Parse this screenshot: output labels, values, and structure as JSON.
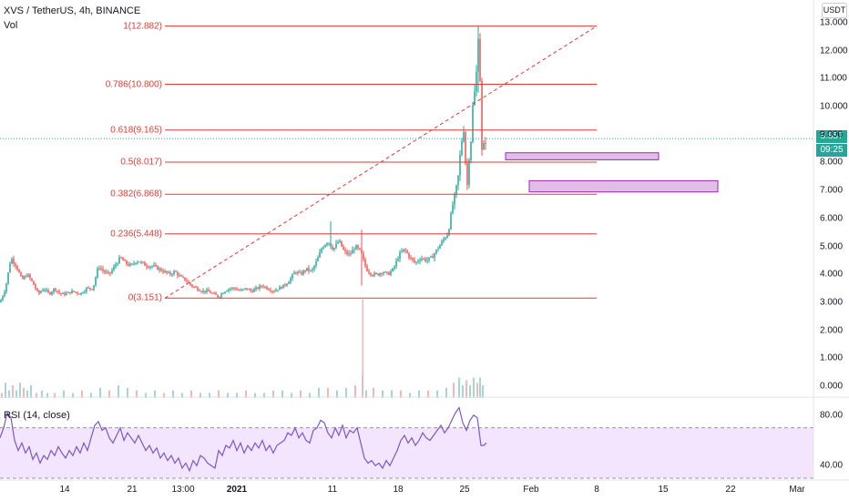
{
  "header": {
    "title": "XVS / TetherUS, 4h, BINANCE",
    "volume_label": "Vol",
    "rsi_label": "RSI (14, close)"
  },
  "price_axis": {
    "unit": "USDT",
    "labels": [
      "13.000",
      "12.000",
      "11.000",
      "10.000",
      "9.000",
      "8.000",
      "7.000",
      "6.000",
      "5.000",
      "4.000",
      "3.000",
      "2.000",
      "1.000",
      "0.000"
    ],
    "current_price": "8.857",
    "countdown": "09:25"
  },
  "rsi_axis": {
    "labels": [
      "80.00",
      "40.00"
    ]
  },
  "time_axis": {
    "labels": [
      "14",
      "21",
      "13:00",
      "2021",
      "11",
      "18",
      "25",
      "Feb",
      "8",
      "15",
      "22",
      "Mar"
    ],
    "bold": [
      "2021"
    ]
  },
  "colors": {
    "up": "#26a69a",
    "down": "#ef5350",
    "fib": "#e53935",
    "rsi_line": "#7e57c2",
    "rsi_band": "#f3e5fd",
    "zone_fill": "#e1bee7",
    "zone_stroke": "#9c27b0"
  },
  "chart_data": {
    "type": "candlestick",
    "symbol": "XVS / TetherUS",
    "timeframe": "4h",
    "exchange": "BINANCE",
    "ylim": [
      0,
      13.2
    ],
    "fib_levels": [
      {
        "ratio": "1",
        "price": 12.882,
        "label": "1(12.882)"
      },
      {
        "ratio": "0.786",
        "price": 10.8,
        "label": "0.786(10.800)"
      },
      {
        "ratio": "0.618",
        "price": 9.165,
        "label": "0.618(9.165)"
      },
      {
        "ratio": "0.5",
        "price": 8.017,
        "label": "0.5(8.017)"
      },
      {
        "ratio": "0.382",
        "price": 6.868,
        "label": "0.382(6.868)"
      },
      {
        "ratio": "0.236",
        "price": 5.448,
        "label": "0.236(5.448)"
      },
      {
        "ratio": "0",
        "price": 3.151,
        "label": "0(3.151)"
      }
    ],
    "price_path": [
      [
        0,
        3.0
      ],
      [
        6,
        3.5
      ],
      [
        12,
        4.6
      ],
      [
        18,
        4.3
      ],
      [
        24,
        3.8
      ],
      [
        30,
        4.0
      ],
      [
        36,
        3.7
      ],
      [
        42,
        3.3
      ],
      [
        48,
        3.5
      ],
      [
        54,
        3.3
      ],
      [
        60,
        3.5
      ],
      [
        66,
        3.3
      ],
      [
        72,
        3.3
      ],
      [
        80,
        3.4
      ],
      [
        88,
        3.3
      ],
      [
        95,
        3.5
      ],
      [
        102,
        3.5
      ],
      [
        108,
        4.3
      ],
      [
        114,
        4.1
      ],
      [
        120,
        4.0
      ],
      [
        126,
        4.3
      ],
      [
        132,
        4.6
      ],
      [
        138,
        4.4
      ],
      [
        144,
        4.3
      ],
      [
        150,
        4.5
      ],
      [
        156,
        4.4
      ],
      [
        162,
        4.3
      ],
      [
        168,
        4.3
      ],
      [
        174,
        4.2
      ],
      [
        180,
        4.1
      ],
      [
        186,
        4.0
      ],
      [
        192,
        4.1
      ],
      [
        198,
        3.9
      ],
      [
        204,
        3.8
      ],
      [
        210,
        3.6
      ],
      [
        216,
        3.5
      ],
      [
        222,
        3.4
      ],
      [
        228,
        3.4
      ],
      [
        234,
        3.3
      ],
      [
        240,
        3.2
      ],
      [
        246,
        3.4
      ],
      [
        252,
        3.5
      ],
      [
        258,
        3.5
      ],
      [
        264,
        3.4
      ],
      [
        270,
        3.5
      ],
      [
        276,
        3.4
      ],
      [
        282,
        3.5
      ],
      [
        288,
        3.6
      ],
      [
        294,
        3.5
      ],
      [
        300,
        3.4
      ],
      [
        306,
        3.5
      ],
      [
        312,
        3.6
      ],
      [
        318,
        3.8
      ],
      [
        324,
        4.1
      ],
      [
        330,
        4.0
      ],
      [
        336,
        4.2
      ],
      [
        342,
        4.1
      ],
      [
        348,
        4.5
      ],
      [
        354,
        5.0
      ],
      [
        360,
        5.2
      ],
      [
        366,
        4.9
      ],
      [
        372,
        5.2
      ],
      [
        378,
        4.8
      ],
      [
        384,
        4.7
      ],
      [
        390,
        5.0
      ],
      [
        396,
        4.8
      ],
      [
        402,
        4.2
      ],
      [
        408,
        4.0
      ],
      [
        414,
        4.0
      ],
      [
        420,
        4.1
      ],
      [
        426,
        4.0
      ],
      [
        432,
        4.2
      ],
      [
        438,
        4.7
      ],
      [
        444,
        4.9
      ],
      [
        450,
        4.6
      ],
      [
        456,
        4.4
      ],
      [
        462,
        4.6
      ],
      [
        468,
        4.5
      ],
      [
        474,
        4.6
      ],
      [
        480,
        4.9
      ],
      [
        486,
        5.2
      ],
      [
        492,
        5.5
      ],
      [
        497,
        6.5
      ],
      [
        500,
        6.9
      ],
      [
        503,
        7.5
      ],
      [
        506,
        8.6
      ],
      [
        509,
        9.2
      ],
      [
        511,
        8.0
      ],
      [
        513,
        7.2
      ],
      [
        515,
        8.2
      ],
      [
        517,
        8.8
      ],
      [
        519,
        10.0
      ],
      [
        521,
        10.5
      ],
      [
        523,
        11.2
      ],
      [
        525,
        12.6
      ],
      [
        527,
        11.0
      ],
      [
        529,
        8.4
      ],
      [
        531,
        8.6
      ],
      [
        534,
        8.857
      ]
    ],
    "volume": [
      [
        2,
        0.02
      ],
      [
        6,
        0.06
      ],
      [
        10,
        0.03
      ],
      [
        14,
        0.05
      ],
      [
        18,
        0.03
      ],
      [
        22,
        0.06
      ],
      [
        26,
        0.04
      ],
      [
        30,
        0.03
      ],
      [
        34,
        0.05
      ],
      [
        40,
        0.02
      ],
      [
        46,
        0.03
      ],
      [
        52,
        0.02
      ],
      [
        60,
        0.02
      ],
      [
        70,
        0.03
      ],
      [
        80,
        0.02
      ],
      [
        90,
        0.03
      ],
      [
        100,
        0.02
      ],
      [
        110,
        0.04
      ],
      [
        120,
        0.03
      ],
      [
        130,
        0.05
      ],
      [
        140,
        0.04
      ],
      [
        150,
        0.03
      ],
      [
        160,
        0.02
      ],
      [
        170,
        0.03
      ],
      [
        180,
        0.02
      ],
      [
        190,
        0.03
      ],
      [
        200,
        0.02
      ],
      [
        210,
        0.03
      ],
      [
        220,
        0.02
      ],
      [
        230,
        0.02
      ],
      [
        240,
        0.03
      ],
      [
        250,
        0.02
      ],
      [
        260,
        0.02
      ],
      [
        270,
        0.03
      ],
      [
        280,
        0.02
      ],
      [
        290,
        0.02
      ],
      [
        300,
        0.03
      ],
      [
        310,
        0.03
      ],
      [
        320,
        0.02
      ],
      [
        330,
        0.03
      ],
      [
        340,
        0.02
      ],
      [
        350,
        0.04
      ],
      [
        360,
        0.04
      ],
      [
        370,
        0.03
      ],
      [
        380,
        0.04
      ],
      [
        390,
        0.05
      ],
      [
        398,
        0.09
      ],
      [
        402,
        0.03
      ],
      [
        410,
        0.04
      ],
      [
        420,
        0.03
      ],
      [
        430,
        0.03
      ],
      [
        440,
        0.03
      ],
      [
        450,
        0.02
      ],
      [
        460,
        0.03
      ],
      [
        470,
        0.03
      ],
      [
        480,
        0.03
      ],
      [
        490,
        0.04
      ],
      [
        498,
        0.06
      ],
      [
        504,
        0.08
      ],
      [
        508,
        0.05
      ],
      [
        512,
        0.07
      ],
      [
        516,
        0.05
      ],
      [
        520,
        0.08
      ],
      [
        524,
        0.06
      ],
      [
        527,
        0.08
      ],
      [
        530,
        0.05
      ]
    ],
    "volume_spike": {
      "x": 398,
      "value": 3.1
    },
    "rsi": [
      [
        0,
        62
      ],
      [
        4,
        70
      ],
      [
        8,
        82
      ],
      [
        12,
        78
      ],
      [
        16,
        60
      ],
      [
        20,
        52
      ],
      [
        24,
        58
      ],
      [
        28,
        50
      ],
      [
        32,
        55
      ],
      [
        36,
        45
      ],
      [
        40,
        50
      ],
      [
        44,
        42
      ],
      [
        48,
        48
      ],
      [
        52,
        45
      ],
      [
        56,
        52
      ],
      [
        60,
        48
      ],
      [
        64,
        55
      ],
      [
        68,
        50
      ],
      [
        72,
        46
      ],
      [
        76,
        52
      ],
      [
        80,
        48
      ],
      [
        84,
        55
      ],
      [
        88,
        50
      ],
      [
        92,
        58
      ],
      [
        96,
        52
      ],
      [
        100,
        62
      ],
      [
        104,
        72
      ],
      [
        108,
        75
      ],
      [
        112,
        68
      ],
      [
        116,
        70
      ],
      [
        120,
        62
      ],
      [
        124,
        58
      ],
      [
        128,
        64
      ],
      [
        132,
        70
      ],
      [
        136,
        60
      ],
      [
        140,
        66
      ],
      [
        144,
        62
      ],
      [
        148,
        58
      ],
      [
        152,
        64
      ],
      [
        156,
        58
      ],
      [
        160,
        52
      ],
      [
        164,
        56
      ],
      [
        168,
        50
      ],
      [
        172,
        54
      ],
      [
        176,
        46
      ],
      [
        180,
        50
      ],
      [
        184,
        44
      ],
      [
        188,
        48
      ],
      [
        192,
        42
      ],
      [
        196,
        46
      ],
      [
        200,
        38
      ],
      [
        204,
        42
      ],
      [
        208,
        36
      ],
      [
        212,
        44
      ],
      [
        216,
        40
      ],
      [
        220,
        48
      ],
      [
        224,
        46
      ],
      [
        228,
        42
      ],
      [
        232,
        40
      ],
      [
        236,
        38
      ],
      [
        240,
        52
      ],
      [
        244,
        48
      ],
      [
        248,
        56
      ],
      [
        252,
        54
      ],
      [
        256,
        60
      ],
      [
        260,
        52
      ],
      [
        264,
        58
      ],
      [
        268,
        50
      ],
      [
        272,
        56
      ],
      [
        276,
        52
      ],
      [
        280,
        58
      ],
      [
        284,
        54
      ],
      [
        288,
        60
      ],
      [
        292,
        52
      ],
      [
        296,
        56
      ],
      [
        300,
        50
      ],
      [
        304,
        56
      ],
      [
        308,
        58
      ],
      [
        312,
        60
      ],
      [
        316,
        66
      ],
      [
        320,
        64
      ],
      [
        324,
        70
      ],
      [
        328,
        62
      ],
      [
        332,
        66
      ],
      [
        336,
        60
      ],
      [
        340,
        58
      ],
      [
        344,
        68
      ],
      [
        348,
        70
      ],
      [
        352,
        76
      ],
      [
        356,
        74
      ],
      [
        360,
        66
      ],
      [
        364,
        62
      ],
      [
        368,
        70
      ],
      [
        372,
        64
      ],
      [
        376,
        72
      ],
      [
        380,
        62
      ],
      [
        384,
        68
      ],
      [
        388,
        66
      ],
      [
        392,
        70
      ],
      [
        396,
        58
      ],
      [
        400,
        46
      ],
      [
        404,
        42
      ],
      [
        408,
        44
      ],
      [
        412,
        40
      ],
      [
        416,
        42
      ],
      [
        420,
        38
      ],
      [
        424,
        44
      ],
      [
        428,
        40
      ],
      [
        432,
        46
      ],
      [
        436,
        52
      ],
      [
        440,
        60
      ],
      [
        444,
        64
      ],
      [
        448,
        58
      ],
      [
        452,
        62
      ],
      [
        456,
        56
      ],
      [
        460,
        60
      ],
      [
        464,
        66
      ],
      [
        468,
        62
      ],
      [
        472,
        60
      ],
      [
        476,
        64
      ],
      [
        480,
        68
      ],
      [
        484,
        72
      ],
      [
        488,
        66
      ],
      [
        492,
        70
      ],
      [
        496,
        76
      ],
      [
        500,
        82
      ],
      [
        504,
        86
      ],
      [
        508,
        74
      ],
      [
        512,
        68
      ],
      [
        516,
        76
      ],
      [
        520,
        80
      ],
      [
        524,
        78
      ],
      [
        528,
        56
      ],
      [
        531,
        56
      ],
      [
        534,
        58
      ]
    ],
    "rsi_range": [
      30,
      90
    ],
    "rsi_overbought": 70,
    "rsi_oversold": 30,
    "trendline": {
      "from": {
        "x": 181,
        "price": 3.151
      },
      "to": {
        "x": 655,
        "price": 12.882
      }
    },
    "fib_x_range": [
      181,
      655
    ],
    "zones": [
      {
        "x0": 555,
        "x1": 723,
        "price_top": 8.35,
        "price_bottom": 8.1
      },
      {
        "x0": 581,
        "x1": 788,
        "price_top": 7.35,
        "price_bottom": 6.95
      }
    ]
  }
}
